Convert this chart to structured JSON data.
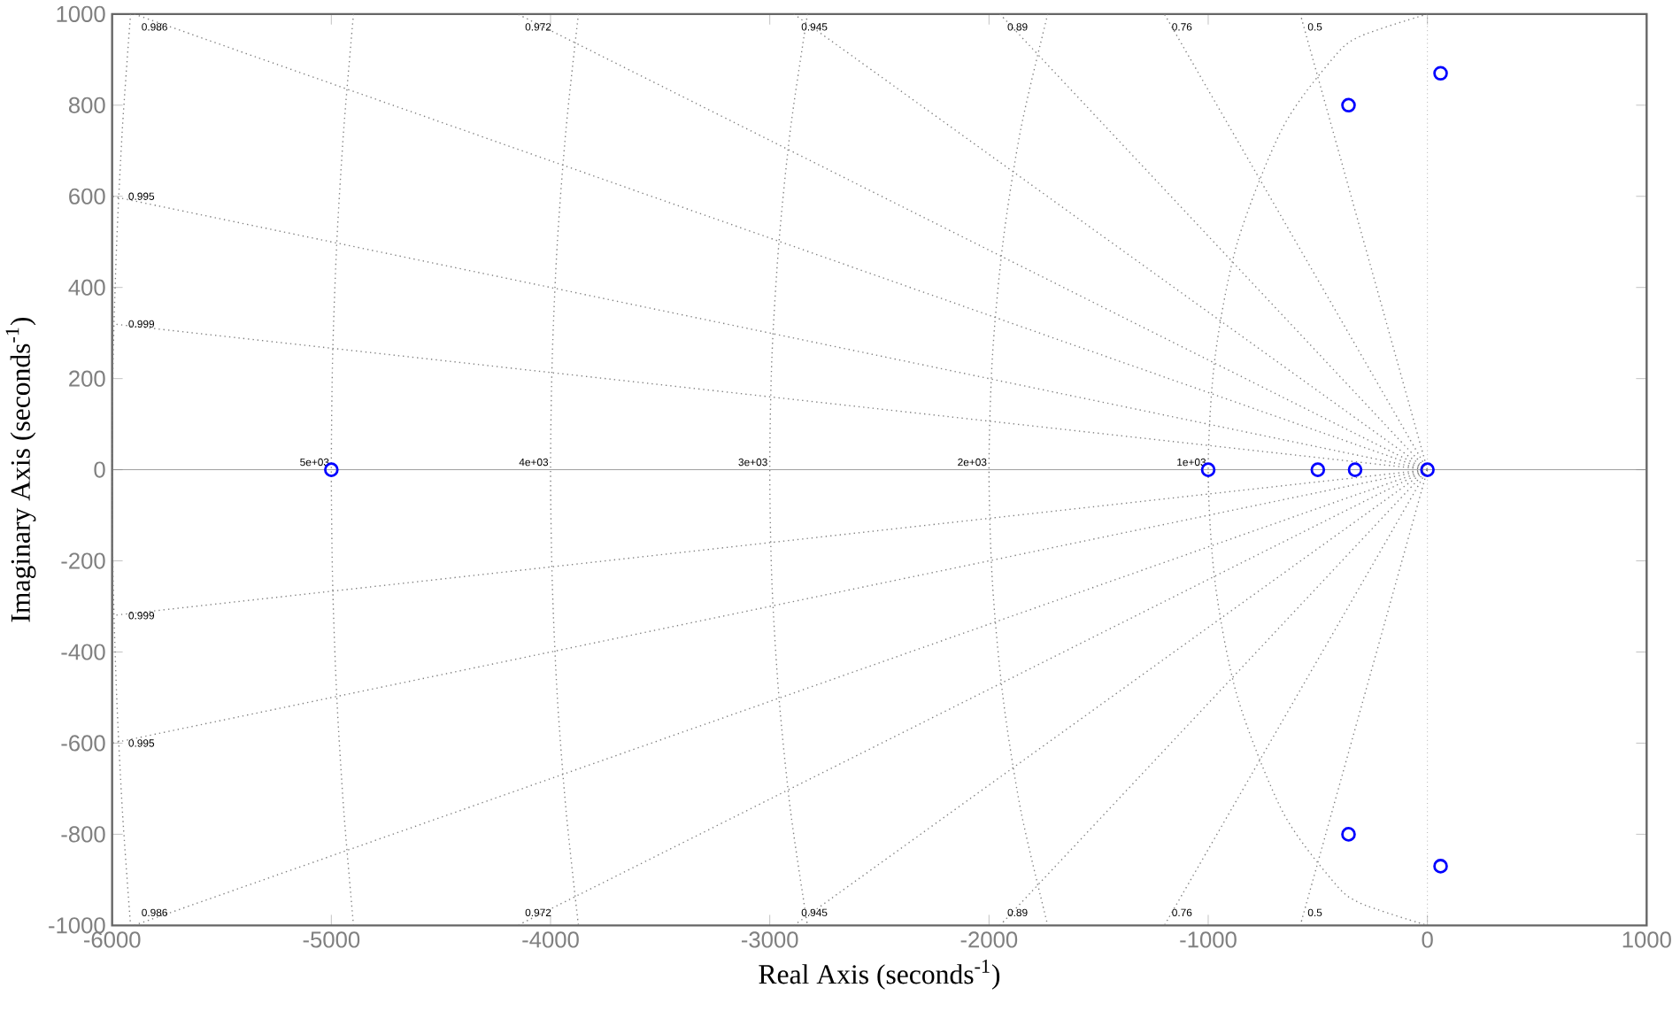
{
  "chart_data": {
    "type": "scatter",
    "xlabel": "Real Axis (seconds$^{-1}$)",
    "ylabel": "Imaginary  Axis (seconds$^{-1}$)",
    "xlim": [
      -6000,
      1000
    ],
    "ylim": [
      -1000,
      1000
    ],
    "xticks": [
      -6000,
      -5000,
      -4000,
      -3000,
      -2000,
      -1000,
      0,
      1000
    ],
    "yticks": [
      -1000,
      -800,
      -600,
      -400,
      -200,
      0,
      200,
      400,
      600,
      800,
      1000
    ],
    "series": [
      {
        "marker": "circle",
        "color": "#0000ff",
        "x": [
          -5000,
          -1000,
          -500,
          -330,
          0,
          -360,
          -360,
          60,
          60
        ],
        "values": [
          0,
          0,
          0,
          0,
          0,
          800,
          -800,
          870,
          -870
        ]
      },
      {
        "type": "line",
        "color": "#808080",
        "line_style": "dotted",
        "x": [
          0,
          -6000
        ],
        "values": [
          0,
          320
        ]
      },
      {
        "type": "line",
        "color": "#808080",
        "line_style": "dotted",
        "x": [
          0,
          -6000
        ],
        "values": [
          0,
          600
        ]
      },
      {
        "type": "line",
        "color": "#808080",
        "line_style": "dotted",
        "x": [
          0,
          -5900
        ],
        "values": [
          0,
          1000
        ]
      },
      {
        "type": "line",
        "color": "#808080",
        "line_style": "dotted",
        "x": [
          0,
          -4150
        ],
        "values": [
          0,
          1000
        ]
      },
      {
        "type": "line",
        "color": "#808080",
        "line_style": "dotted",
        "x": [
          0,
          -2890
        ],
        "values": [
          0,
          1000
        ]
      },
      {
        "type": "line",
        "color": "#808080",
        "line_style": "dotted",
        "x": [
          0,
          -1950
        ],
        "values": [
          0,
          1000
        ]
      },
      {
        "type": "line",
        "color": "#808080",
        "line_style": "dotted",
        "x": [
          0,
          -1200
        ],
        "values": [
          0,
          1000
        ]
      },
      {
        "type": "line",
        "color": "#808080",
        "line_style": "dotted",
        "x": [
          0,
          -580
        ],
        "values": [
          0,
          1000
        ]
      },
      {
        "type": "line",
        "color": "#808080",
        "line_style": "dotted",
        "x": [
          0,
          -6000
        ],
        "values": [
          0,
          -320
        ]
      },
      {
        "type": "line",
        "color": "#808080",
        "line_style": "dotted",
        "x": [
          0,
          -6000
        ],
        "values": [
          0,
          -600
        ]
      },
      {
        "type": "line",
        "color": "#808080",
        "line_style": "dotted",
        "x": [
          0,
          -5900
        ],
        "values": [
          0,
          -1000
        ]
      },
      {
        "type": "line",
        "color": "#808080",
        "line_style": "dotted",
        "x": [
          0,
          -4150
        ],
        "values": [
          0,
          -1000
        ]
      },
      {
        "type": "line",
        "color": "#808080",
        "line_style": "dotted",
        "x": [
          0,
          -2890
        ],
        "values": [
          0,
          -1000
        ]
      },
      {
        "type": "line",
        "color": "#808080",
        "line_style": "dotted",
        "x": [
          0,
          -1950
        ],
        "values": [
          0,
          -1000
        ]
      },
      {
        "type": "line",
        "color": "#808080",
        "line_style": "dotted",
        "x": [
          0,
          -1200
        ],
        "values": [
          0,
          -1000
        ]
      },
      {
        "type": "line",
        "color": "#808080",
        "line_style": "dotted",
        "x": [
          0,
          -580
        ],
        "values": [
          0,
          -1000
        ]
      },
      {
        "type": "line",
        "color": "#808080",
        "line_style": "dotted",
        "x": [
          0,
          -312,
          -436,
          -661,
          -866,
          -968,
          -1000,
          -968,
          -866,
          -661,
          -436,
          -312,
          0
        ],
        "values": [
          1000,
          950,
          900,
          750,
          500,
          250,
          0,
          -250,
          -500,
          -750,
          -900,
          -950,
          -1000
        ]
      },
      {
        "type": "line",
        "color": "#808080",
        "line_style": "dotted",
        "x": [
          -1732,
          -1854,
          -1936,
          -1984,
          -2000,
          -1984,
          -1936,
          -1854,
          -1732
        ],
        "values": [
          1000,
          750,
          500,
          250,
          0,
          -250,
          -500,
          -750,
          -1000
        ]
      },
      {
        "type": "line",
        "color": "#808080",
        "line_style": "dotted",
        "x": [
          -2828,
          -2905,
          -2958,
          -2990,
          -3000,
          -2990,
          -2958,
          -2905,
          -2828
        ],
        "values": [
          1000,
          750,
          500,
          250,
          0,
          -250,
          -500,
          -750,
          -1000
        ]
      },
      {
        "type": "line",
        "color": "#808080",
        "line_style": "dotted",
        "x": [
          -3873,
          -3929,
          -3969,
          -3992,
          -4000,
          -3992,
          -3969,
          -3929,
          -3873
        ],
        "values": [
          1000,
          750,
          500,
          250,
          0,
          -250,
          -500,
          -750,
          -1000
        ]
      },
      {
        "type": "line",
        "color": "#808080",
        "line_style": "dotted",
        "x": [
          -4899,
          -4943,
          -4975,
          -4994,
          -5000,
          -4994,
          -4975,
          -4943,
          -4899
        ],
        "values": [
          1000,
          750,
          500,
          250,
          0,
          -250,
          -500,
          -750,
          -1000
        ]
      },
      {
        "type": "line",
        "color": "#808080",
        "line_style": "dotted",
        "x": [
          -5916,
          -5953,
          -5979,
          -5995,
          -6000,
          -5995,
          -5979,
          -5953,
          -5916
        ],
        "values": [
          1000,
          750,
          500,
          250,
          0,
          -250,
          -500,
          -750,
          -1000
        ]
      }
    ],
    "ref_lines": [
      {
        "axis": "x",
        "value": 0,
        "color": "#808080",
        "line_style": "dotted"
      },
      {
        "axis": "y",
        "value": 0,
        "color": "#808080",
        "line_style": "solid"
      }
    ],
    "annotations": [
      {
        "text": "0.986",
        "x": -5900,
        "y": 1000
      },
      {
        "text": "0.972",
        "x": -4150,
        "y": 1000
      },
      {
        "text": "0.945",
        "x": -2890,
        "y": 1000
      },
      {
        "text": "0.89",
        "x": -1950,
        "y": 1000
      },
      {
        "text": "0.76",
        "x": -1200,
        "y": 1000
      },
      {
        "text": "0.5",
        "x": -580,
        "y": 1000
      },
      {
        "text": "0.995",
        "x": -6000,
        "y": 600
      },
      {
        "text": "0.999",
        "x": -6000,
        "y": 320
      },
      {
        "text": "5e+03",
        "x": -5000,
        "y": 0
      },
      {
        "text": "4e+03",
        "x": -4000,
        "y": 0
      },
      {
        "text": "3e+03",
        "x": -3000,
        "y": 0
      },
      {
        "text": "2e+03",
        "x": -2000,
        "y": 0
      },
      {
        "text": "1e+03",
        "x": -1000,
        "y": 0
      },
      {
        "text": "0.999",
        "x": -6000,
        "y": -320
      },
      {
        "text": "0.995",
        "x": -6000,
        "y": -600
      },
      {
        "text": "0.986",
        "x": -5900,
        "y": -1000
      },
      {
        "text": "0.972",
        "x": -4150,
        "y": -1000
      },
      {
        "text": "0.945",
        "x": -2890,
        "y": -1000
      },
      {
        "text": "0.89",
        "x": -1950,
        "y": -1000
      },
      {
        "text": "0.76",
        "x": -1200,
        "y": -1000
      },
      {
        "text": "0.5",
        "x": -580,
        "y": -1000
      }
    ]
  }
}
